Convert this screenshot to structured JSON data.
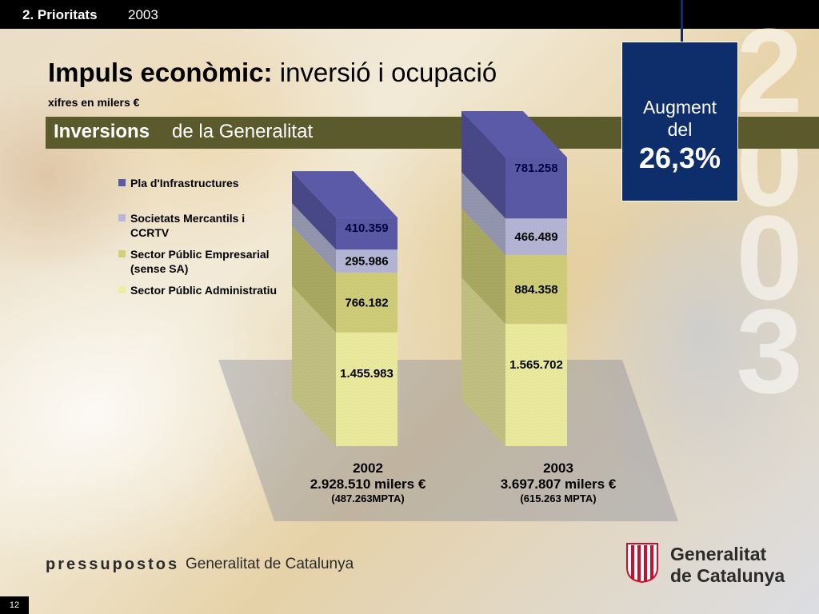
{
  "header": {
    "section_bold": "2. Prioritats",
    "section_year": "2003"
  },
  "title": {
    "bold": "Impuls econòmic:",
    "normal": "inversió i ocupació"
  },
  "subtitle": "xifres en milers €",
  "section": {
    "bold": "Inversions",
    "normal": "de la Generalitat"
  },
  "augment": {
    "line1": "Augment",
    "line2": "del",
    "value": "26,3%"
  },
  "big_year_digits": [
    "2",
    "0",
    "0",
    "3"
  ],
  "chart_data": {
    "type": "bar",
    "stacked": true,
    "categories": [
      "2002",
      "2003"
    ],
    "series": [
      {
        "name": "Sector Públic Administratiu",
        "values": [
          1455983,
          1565702
        ],
        "labels": [
          "1.455.983",
          "1.565.702"
        ],
        "color": "#efeea0"
      },
      {
        "name": "Sector Públic Empresarial (sense SA)",
        "values": [
          766182,
          884358
        ],
        "labels": [
          "766.182",
          "884.358"
        ],
        "color": "#d2d07a"
      },
      {
        "name": "Societats Mercantils i CCRTV",
        "values": [
          295986,
          466489
        ],
        "labels": [
          "295.986",
          "466.489"
        ],
        "color": "#b7b8d8"
      },
      {
        "name": "Pla d'Infrastructures",
        "values": [
          410359,
          781258
        ],
        "labels": [
          "410.359",
          "781.258"
        ],
        "color": "#5a5aa8"
      }
    ],
    "totals": [
      {
        "year": "2002",
        "total": "2.928.510 milers €",
        "pta": "(487.263MPTA)"
      },
      {
        "year": "2003",
        "total": "3.697.807 milers €",
        "pta": "(615.263 MPTA)"
      }
    ]
  },
  "legend_order": [
    3,
    2,
    1,
    0
  ],
  "footer": {
    "brand": "pressupostos",
    "org": "Generalitat de Catalunya",
    "logo_line1": "Generalitat",
    "logo_line2": "de Catalunya",
    "page": "12"
  }
}
